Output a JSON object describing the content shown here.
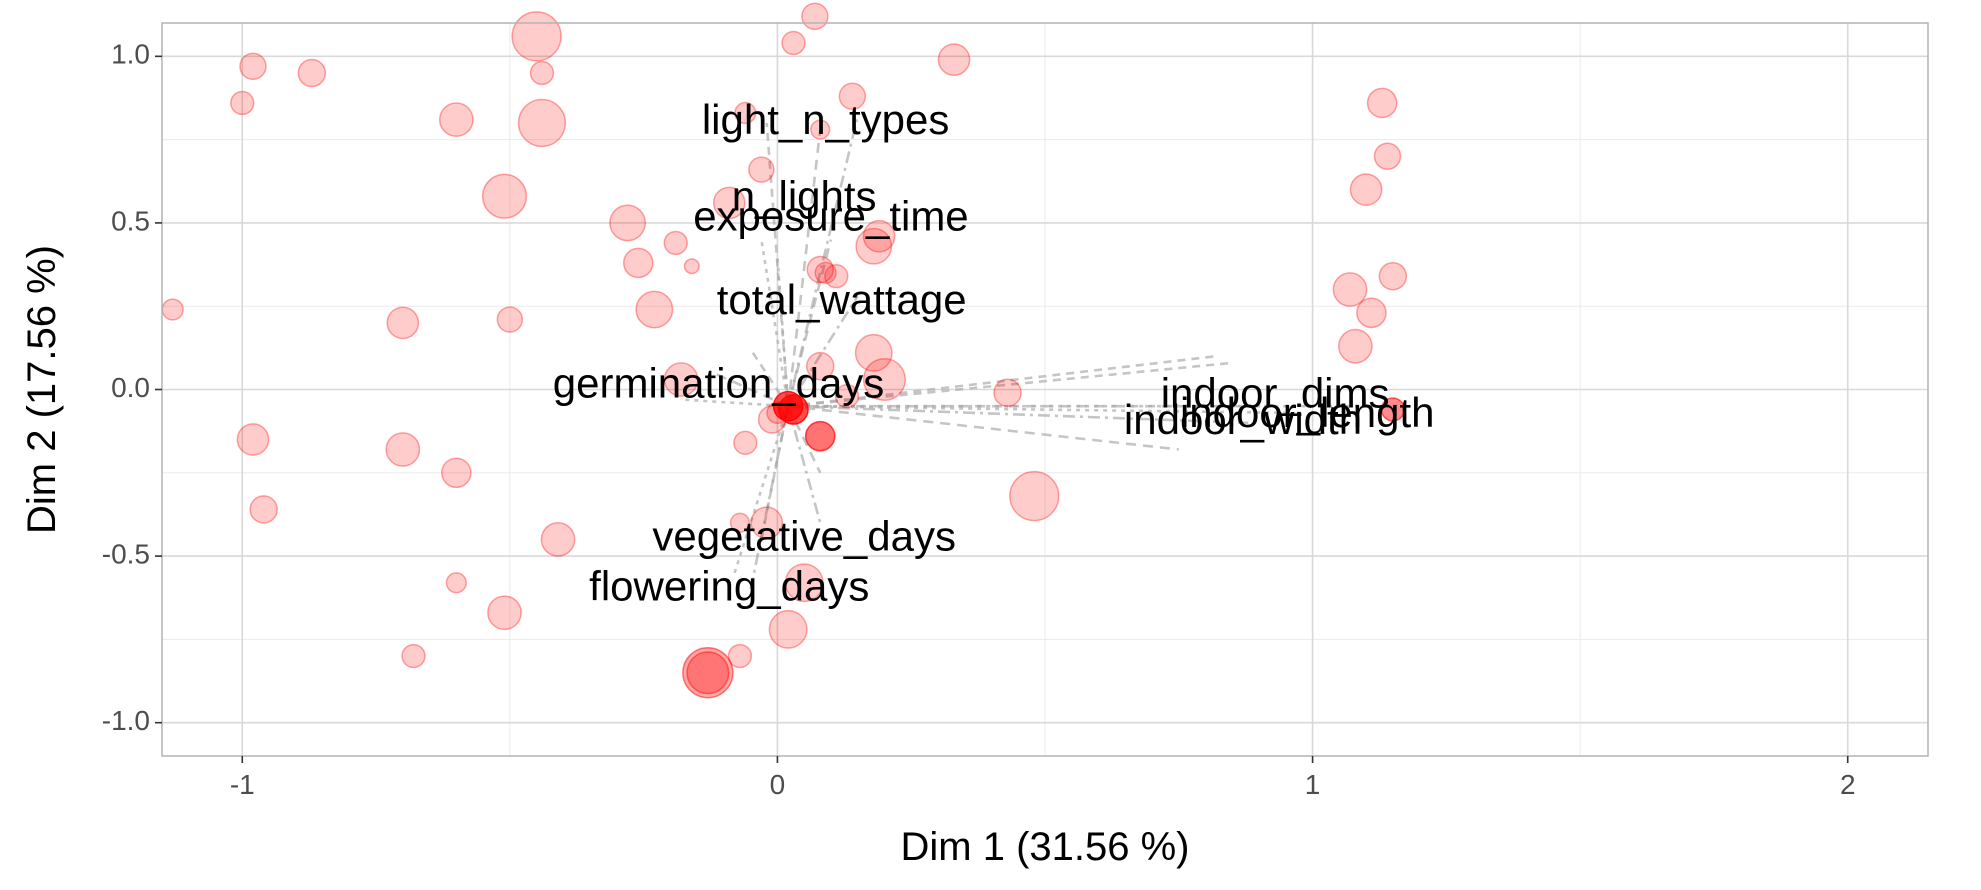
{
  "chart_data": {
    "type": "scatter",
    "xlabel": "Dim 1 (31.56 %)",
    "ylabel": "Dim 2 (17.56 %)",
    "xlim": [
      -1.15,
      2.15
    ],
    "ylim": [
      -1.1,
      1.1
    ],
    "x_ticks": [
      -1,
      0,
      1,
      2
    ],
    "x_tick_labels": [
      "-1",
      "0",
      "1",
      "2"
    ],
    "y_ticks": [
      -1.0,
      -0.5,
      0.0,
      0.5,
      1.0
    ],
    "y_tick_labels": [
      "-1.0",
      "-0.5",
      "0.0",
      "0.5",
      "1.0"
    ],
    "grid": true,
    "colors": {
      "point": "#ff0000",
      "segment": "#a6a6a6",
      "grid_major": "#d9d9d9",
      "grid_minor": "#ebebeb",
      "panel_border": "#b3b3b3"
    },
    "variables": [
      {
        "label": "light_n_types",
        "x": 0.08,
        "y": 0.8,
        "label_x": 0.09,
        "label_y": 0.8
      },
      {
        "label": "n_lights",
        "x": 0.05,
        "y": 0.57,
        "label_x": 0.05,
        "label_y": 0.57
      },
      {
        "label": "exposure_time",
        "x": 0.1,
        "y": 0.51,
        "label_x": 0.1,
        "label_y": 0.51
      },
      {
        "label": "total_wattage",
        "x": 0.12,
        "y": 0.26,
        "label_x": 0.12,
        "label_y": 0.26
      },
      {
        "label": "germination_days",
        "x": -0.11,
        "y": 0.01,
        "label_x": -0.11,
        "label_y": 0.01
      },
      {
        "label": "vegetative_days",
        "x": 0.05,
        "y": -0.45,
        "label_x": 0.05,
        "label_y": -0.45
      },
      {
        "label": "flowering_days",
        "x": -0.09,
        "y": -0.6,
        "label_x": -0.09,
        "label_y": -0.6
      },
      {
        "label": "indoor_dims",
        "x": 0.93,
        "y": -0.02,
        "label_x": 0.93,
        "label_y": -0.02
      },
      {
        "label": "indoor_length",
        "x": 0.99,
        "y": -0.08,
        "label_x": 0.99,
        "label_y": -0.08
      },
      {
        "label": "indoor_width",
        "x": 0.87,
        "y": -0.1,
        "label_x": 0.87,
        "label_y": -0.1
      }
    ],
    "segments": [
      {
        "x": 0.02,
        "y": -0.05,
        "xend": 0.08,
        "yend": 0.78
      },
      {
        "x": 0.02,
        "y": -0.05,
        "xend": 0.0,
        "yend": 0.4
      },
      {
        "x": 0.02,
        "y": -0.05,
        "xend": 0.15,
        "yend": 0.82
      },
      {
        "x": 0.02,
        "y": -0.05,
        "xend": -0.02,
        "yend": 0.8
      },
      {
        "x": 0.02,
        "y": -0.05,
        "xend": 0.1,
        "yend": 0.45
      },
      {
        "x": 0.02,
        "y": -0.05,
        "xend": -0.03,
        "yend": 0.45
      },
      {
        "x": 0.02,
        "y": -0.05,
        "xend": 0.15,
        "yend": 0.28
      },
      {
        "x": 0.02,
        "y": -0.05,
        "xend": -0.05,
        "yend": 0.12
      },
      {
        "x": 0.02,
        "y": -0.05,
        "xend": -0.12,
        "yend": 0.05
      },
      {
        "x": 0.02,
        "y": -0.05,
        "xend": -0.18,
        "yend": -0.03
      },
      {
        "x": 0.02,
        "y": -0.05,
        "xend": 0.08,
        "yend": -0.4
      },
      {
        "x": 0.02,
        "y": -0.05,
        "xend": -0.03,
        "yend": -0.45
      },
      {
        "x": 0.02,
        "y": -0.05,
        "xend": 0.08,
        "yend": -0.25
      },
      {
        "x": 0.02,
        "y": -0.05,
        "xend": -0.08,
        "yend": -0.55
      },
      {
        "x": 0.02,
        "y": -0.05,
        "xend": -0.05,
        "yend": -0.6
      },
      {
        "x": 0.02,
        "y": -0.05,
        "xend": 0.85,
        "yend": 0.08
      },
      {
        "x": 0.02,
        "y": -0.05,
        "xend": 0.92,
        "yend": -0.05
      },
      {
        "x": 0.02,
        "y": -0.05,
        "xend": 0.95,
        "yend": -0.07
      },
      {
        "x": 0.02,
        "y": -0.05,
        "xend": 0.88,
        "yend": -0.1
      },
      {
        "x": 0.02,
        "y": -0.05,
        "xend": 0.82,
        "yend": 0.1
      },
      {
        "x": 0.02,
        "y": -0.05,
        "xend": 0.75,
        "yend": -0.18
      },
      {
        "x": 0.02,
        "y": -0.05,
        "xend": 1.1,
        "yend": -0.05
      }
    ],
    "points": [
      {
        "x": -0.45,
        "y": 1.06,
        "size": 4.7,
        "alpha": 0.2
      },
      {
        "x": 0.07,
        "y": 1.12,
        "size": 2.5,
        "alpha": 0.2
      },
      {
        "x": 0.03,
        "y": 1.04,
        "size": 2.2,
        "alpha": 0.2
      },
      {
        "x": 0.33,
        "y": 0.99,
        "size": 3.0,
        "alpha": 0.2
      },
      {
        "x": -0.98,
        "y": 0.97,
        "size": 2.5,
        "alpha": 0.2
      },
      {
        "x": -0.87,
        "y": 0.95,
        "size": 2.6,
        "alpha": 0.2
      },
      {
        "x": -0.44,
        "y": 0.95,
        "size": 2.2,
        "alpha": 0.2
      },
      {
        "x": -1.0,
        "y": 0.86,
        "size": 2.2,
        "alpha": 0.2
      },
      {
        "x": 0.14,
        "y": 0.88,
        "size": 2.5,
        "alpha": 0.2
      },
      {
        "x": -0.06,
        "y": 0.83,
        "size": 2.0,
        "alpha": 0.2
      },
      {
        "x": -0.6,
        "y": 0.81,
        "size": 3.2,
        "alpha": 0.2
      },
      {
        "x": -0.44,
        "y": 0.8,
        "size": 4.5,
        "alpha": 0.2
      },
      {
        "x": 0.08,
        "y": 0.78,
        "size": 1.8,
        "alpha": 0.2
      },
      {
        "x": 1.13,
        "y": 0.86,
        "size": 2.8,
        "alpha": 0.2
      },
      {
        "x": 1.14,
        "y": 0.7,
        "size": 2.5,
        "alpha": 0.2
      },
      {
        "x": 1.1,
        "y": 0.6,
        "size": 3.0,
        "alpha": 0.2
      },
      {
        "x": -0.03,
        "y": 0.66,
        "size": 2.4,
        "alpha": 0.2
      },
      {
        "x": -0.51,
        "y": 0.58,
        "size": 4.2,
        "alpha": 0.2
      },
      {
        "x": -0.09,
        "y": 0.56,
        "size": 3.0,
        "alpha": 0.2
      },
      {
        "x": -0.28,
        "y": 0.5,
        "size": 3.4,
        "alpha": 0.2
      },
      {
        "x": 0.19,
        "y": 0.46,
        "size": 3.0,
        "alpha": 0.2
      },
      {
        "x": -0.19,
        "y": 0.44,
        "size": 2.2,
        "alpha": 0.2
      },
      {
        "x": 0.18,
        "y": 0.43,
        "size": 3.4,
        "alpha": 0.2
      },
      {
        "x": -0.26,
        "y": 0.38,
        "size": 2.8,
        "alpha": 0.2
      },
      {
        "x": -0.16,
        "y": 0.37,
        "size": 1.4,
        "alpha": 0.2
      },
      {
        "x": 0.08,
        "y": 0.36,
        "size": 2.5,
        "alpha": 0.2
      },
      {
        "x": 0.09,
        "y": 0.35,
        "size": 2.0,
        "alpha": 0.2
      },
      {
        "x": 0.11,
        "y": 0.34,
        "size": 2.2,
        "alpha": 0.2
      },
      {
        "x": 1.15,
        "y": 0.34,
        "size": 2.6,
        "alpha": 0.2
      },
      {
        "x": 1.07,
        "y": 0.3,
        "size": 3.2,
        "alpha": 0.2
      },
      {
        "x": 1.11,
        "y": 0.23,
        "size": 2.8,
        "alpha": 0.2
      },
      {
        "x": 1.08,
        "y": 0.13,
        "size": 3.2,
        "alpha": 0.2
      },
      {
        "x": -1.13,
        "y": 0.24,
        "size": 2.0,
        "alpha": 0.2
      },
      {
        "x": -0.23,
        "y": 0.24,
        "size": 3.5,
        "alpha": 0.2
      },
      {
        "x": -0.7,
        "y": 0.2,
        "size": 3.0,
        "alpha": 0.2
      },
      {
        "x": -0.5,
        "y": 0.21,
        "size": 2.4,
        "alpha": 0.2
      },
      {
        "x": 0.18,
        "y": 0.11,
        "size": 3.5,
        "alpha": 0.2
      },
      {
        "x": 0.2,
        "y": 0.03,
        "size": 4.0,
        "alpha": 0.2
      },
      {
        "x": 0.08,
        "y": 0.07,
        "size": 2.6,
        "alpha": 0.2
      },
      {
        "x": -0.18,
        "y": 0.03,
        "size": 3.2,
        "alpha": 0.2
      },
      {
        "x": 0.43,
        "y": -0.01,
        "size": 2.6,
        "alpha": 0.2
      },
      {
        "x": 0.13,
        "y": -0.02,
        "size": 2.2,
        "alpha": 0.2
      },
      {
        "x": 0.0,
        "y": -0.07,
        "size": 2.0,
        "alpha": 0.2
      },
      {
        "x": -0.01,
        "y": -0.09,
        "size": 2.6,
        "alpha": 0.2
      },
      {
        "x": 0.02,
        "y": -0.05,
        "size": 2.8,
        "alpha": 0.7
      },
      {
        "x": 0.03,
        "y": -0.06,
        "size": 2.8,
        "alpha": 0.7
      },
      {
        "x": 0.08,
        "y": -0.14,
        "size": 2.8,
        "alpha": 0.55
      },
      {
        "x": 1.15,
        "y": -0.06,
        "size": 2.2,
        "alpha": 0.45
      },
      {
        "x": -0.98,
        "y": -0.15,
        "size": 3.0,
        "alpha": 0.2
      },
      {
        "x": -0.7,
        "y": -0.18,
        "size": 3.2,
        "alpha": 0.2
      },
      {
        "x": -0.06,
        "y": -0.16,
        "size": 2.2,
        "alpha": 0.2
      },
      {
        "x": -0.6,
        "y": -0.25,
        "size": 2.8,
        "alpha": 0.2
      },
      {
        "x": 0.48,
        "y": -0.32,
        "size": 4.7,
        "alpha": 0.2
      },
      {
        "x": -0.96,
        "y": -0.36,
        "size": 2.6,
        "alpha": 0.2
      },
      {
        "x": -0.07,
        "y": -0.4,
        "size": 1.8,
        "alpha": 0.2
      },
      {
        "x": -0.02,
        "y": -0.4,
        "size": 3.0,
        "alpha": 0.2
      },
      {
        "x": -0.41,
        "y": -0.45,
        "size": 3.2,
        "alpha": 0.2
      },
      {
        "x": 0.05,
        "y": -0.58,
        "size": 3.6,
        "alpha": 0.2
      },
      {
        "x": -0.6,
        "y": -0.58,
        "size": 1.9,
        "alpha": 0.2
      },
      {
        "x": -0.51,
        "y": -0.67,
        "size": 3.2,
        "alpha": 0.2
      },
      {
        "x": 0.02,
        "y": -0.72,
        "size": 3.6,
        "alpha": 0.2
      },
      {
        "x": -0.68,
        "y": -0.8,
        "size": 2.2,
        "alpha": 0.2
      },
      {
        "x": -0.07,
        "y": -0.8,
        "size": 2.2,
        "alpha": 0.2
      },
      {
        "x": -0.13,
        "y": -0.85,
        "size": 4.8,
        "alpha": 0.35
      },
      {
        "x": -0.13,
        "y": -0.85,
        "size": 4.0,
        "alpha": 0.3
      }
    ]
  }
}
